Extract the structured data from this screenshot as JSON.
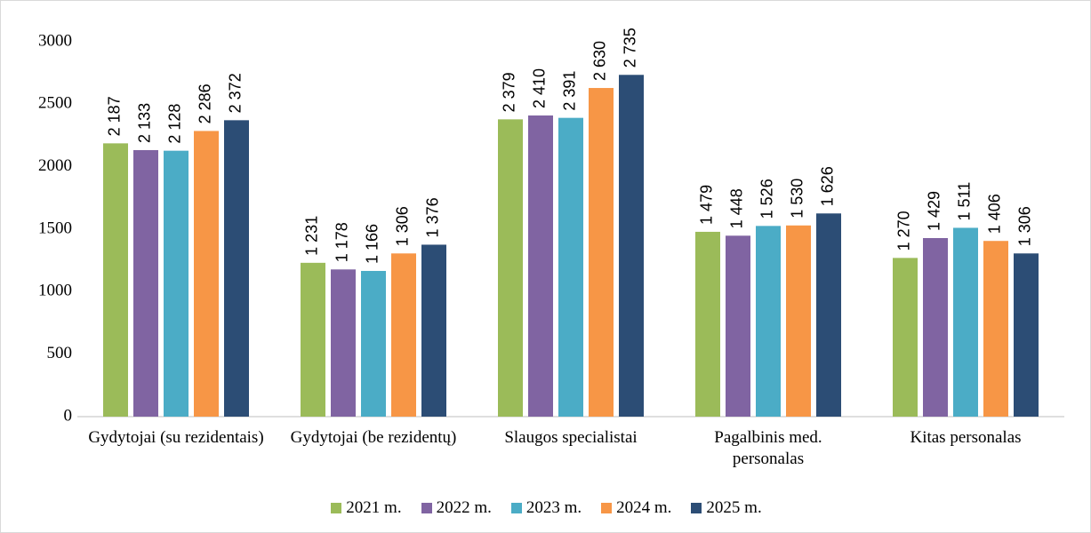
{
  "chart_data": {
    "type": "bar",
    "categories": [
      "Gydytojai (su rezidentais)",
      "Gydytojai (be rezidentų)",
      "Slaugos specialistai",
      "Pagalbinis med. personalas",
      "Kitas personalas"
    ],
    "series": [
      {
        "name": "2021 m.",
        "color": "#9bbb59",
        "values": [
          2187,
          1231,
          2379,
          1479,
          1270
        ],
        "value_labels": [
          "2 187",
          "1 231",
          "2 379",
          "1 479",
          "1 270"
        ]
      },
      {
        "name": "2022 m.",
        "color": "#8064a2",
        "values": [
          2133,
          1178,
          2410,
          1448,
          1429
        ],
        "value_labels": [
          "2 133",
          "1 178",
          "2 410",
          "1 448",
          "1 429"
        ]
      },
      {
        "name": "2023 m.",
        "color": "#4bacc6",
        "values": [
          2128,
          1166,
          2391,
          1526,
          1511
        ],
        "value_labels": [
          "2 128",
          "1 166",
          "2 391",
          "1 526",
          "1 511"
        ]
      },
      {
        "name": "2024 m.",
        "color": "#f79646",
        "values": [
          2286,
          1306,
          2630,
          1530,
          1406
        ],
        "value_labels": [
          "2 286",
          "1 306",
          "2 630",
          "1 530",
          "1 406"
        ]
      },
      {
        "name": "2025 m.",
        "color": "#2c4d75",
        "values": [
          2372,
          1376,
          2735,
          1626,
          1306
        ],
        "value_labels": [
          "2 372",
          "1 376",
          "2 735",
          "1 626",
          "1 306"
        ]
      }
    ],
    "ylim": [
      0,
      3000
    ],
    "yticks": [
      0,
      500,
      1000,
      1500,
      2000,
      2500,
      3000
    ],
    "grid": false,
    "legend": "bottom"
  }
}
